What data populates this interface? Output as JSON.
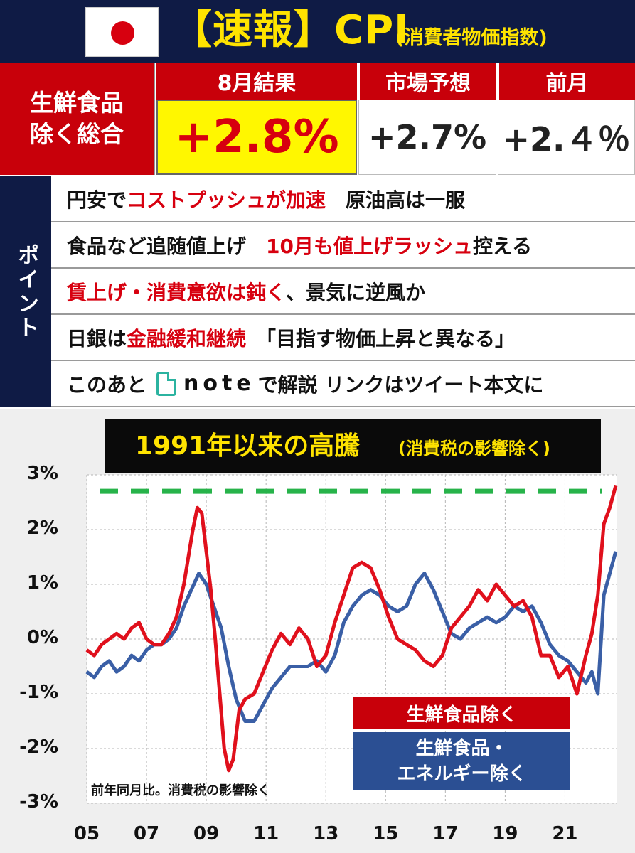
{
  "header": {
    "title": "【速報】CPI",
    "subtitle": "(消費者物価指数)",
    "flag_icon": "japan-flag-icon"
  },
  "results": {
    "row_label_line1": "生鮮食品",
    "row_label_line2": "除く総合",
    "col1_head": "8月結果",
    "col2_head": "市場予想",
    "col3_head": "前月",
    "col1_value": "+2.8%",
    "col2_value": "+2.7%",
    "col3_value": "+2.４％"
  },
  "points": {
    "side_label": "ポイント",
    "row1": {
      "a": "円安で",
      "b": "コストプッシュが加速",
      "c": "　原油高は一服"
    },
    "row2": {
      "a": "食品など追随値上げ　",
      "b": "10月も値上げラッシュ",
      "c": "控える"
    },
    "row3": {
      "a": "賃上げ・消費意欲は鈍く",
      "b": "、景気に逆風か"
    },
    "row4": {
      "a": "日銀は",
      "b": "金融緩和継続",
      "c": "　「目指す物価上昇と異なる」"
    },
    "row5": {
      "a": "このあと",
      "note": "note",
      "b": "で解説 リンクはツイート本文に"
    }
  },
  "chart_data": {
    "type": "line",
    "title": "1991年以来の高騰",
    "subtitle": "(消費税の影響除く)",
    "note": "前年同月比。消費税の影響除く",
    "y_ticks": [
      "3%",
      "2%",
      "1%",
      "0%",
      "-1%",
      "-2%",
      "-3%"
    ],
    "x_ticks": [
      "05",
      "07",
      "09",
      "11",
      "13",
      "15",
      "17",
      "19",
      "21"
    ],
    "ylim": [
      -3,
      3
    ],
    "xlim": [
      2005.0,
      2022.75
    ],
    "reference_line": {
      "value": 2.7,
      "color": "#27b34a",
      "style": "dashed"
    },
    "colors": {
      "red": "#e0101c",
      "blue": "#3a5fa6"
    },
    "series": [
      {
        "name": "生鮮食品除く",
        "color": "#e0101c",
        "x": [
          2005.0,
          2005.25,
          2005.5,
          2005.75,
          2006.0,
          2006.25,
          2006.5,
          2006.75,
          2007.0,
          2007.25,
          2007.5,
          2007.75,
          2008.0,
          2008.25,
          2008.4,
          2008.55,
          2008.7,
          2008.85,
          2009.0,
          2009.15,
          2009.3,
          2009.45,
          2009.6,
          2009.75,
          2009.9,
          2010.1,
          2010.3,
          2010.6,
          2010.9,
          2011.2,
          2011.5,
          2011.8,
          2012.1,
          2012.4,
          2012.7,
          2013.0,
          2013.3,
          2013.6,
          2013.9,
          2014.2,
          2014.5,
          2014.8,
          2015.1,
          2015.4,
          2015.7,
          2016.0,
          2016.3,
          2016.6,
          2016.9,
          2017.2,
          2017.5,
          2017.8,
          2018.1,
          2018.4,
          2018.7,
          2019.0,
          2019.3,
          2019.6,
          2019.9,
          2020.2,
          2020.5,
          2020.8,
          2021.1,
          2021.4,
          2021.7,
          2021.9,
          2022.1,
          2022.3,
          2022.5,
          2022.7
        ],
        "values": [
          -0.2,
          -0.3,
          -0.1,
          0.0,
          0.1,
          0.0,
          0.2,
          0.3,
          0.0,
          -0.1,
          -0.1,
          0.1,
          0.4,
          1.0,
          1.5,
          2.0,
          2.4,
          2.3,
          1.6,
          0.9,
          0.0,
          -1.0,
          -2.0,
          -2.4,
          -2.2,
          -1.3,
          -1.1,
          -1.0,
          -0.6,
          -0.2,
          0.1,
          -0.1,
          0.2,
          0.0,
          -0.5,
          -0.3,
          0.3,
          0.8,
          1.3,
          1.4,
          1.3,
          0.9,
          0.4,
          0.0,
          -0.1,
          -0.2,
          -0.4,
          -0.5,
          -0.3,
          0.2,
          0.4,
          0.6,
          0.9,
          0.7,
          1.0,
          0.8,
          0.6,
          0.7,
          0.4,
          -0.3,
          -0.3,
          -0.7,
          -0.5,
          -1.0,
          -0.3,
          0.1,
          0.8,
          2.1,
          2.4,
          2.8
        ]
      },
      {
        "name": "生鮮食品・エネルギー除く",
        "color": "#3a5fa6",
        "x": [
          2005.0,
          2005.25,
          2005.5,
          2005.75,
          2006.0,
          2006.25,
          2006.5,
          2006.75,
          2007.0,
          2007.25,
          2007.5,
          2007.75,
          2008.0,
          2008.25,
          2008.5,
          2008.75,
          2009.0,
          2009.25,
          2009.5,
          2009.75,
          2010.0,
          2010.3,
          2010.6,
          2010.9,
          2011.2,
          2011.5,
          2011.8,
          2012.1,
          2012.4,
          2012.7,
          2013.0,
          2013.3,
          2013.6,
          2013.9,
          2014.2,
          2014.5,
          2014.8,
          2015.1,
          2015.4,
          2015.7,
          2016.0,
          2016.3,
          2016.6,
          2016.9,
          2017.2,
          2017.5,
          2017.8,
          2018.1,
          2018.4,
          2018.7,
          2019.0,
          2019.3,
          2019.6,
          2019.9,
          2020.2,
          2020.5,
          2020.8,
          2021.1,
          2021.4,
          2021.7,
          2021.9,
          2022.1,
          2022.3,
          2022.5,
          2022.7
        ],
        "values": [
          -0.6,
          -0.7,
          -0.5,
          -0.4,
          -0.6,
          -0.5,
          -0.3,
          -0.4,
          -0.2,
          -0.1,
          -0.1,
          0.0,
          0.2,
          0.6,
          0.9,
          1.2,
          1.0,
          0.6,
          0.2,
          -0.5,
          -1.1,
          -1.5,
          -1.5,
          -1.2,
          -0.9,
          -0.7,
          -0.5,
          -0.5,
          -0.5,
          -0.4,
          -0.6,
          -0.3,
          0.3,
          0.6,
          0.8,
          0.9,
          0.8,
          0.6,
          0.5,
          0.6,
          1.0,
          1.2,
          0.9,
          0.5,
          0.1,
          0.0,
          0.2,
          0.3,
          0.4,
          0.3,
          0.4,
          0.6,
          0.5,
          0.6,
          0.3,
          -0.1,
          -0.3,
          -0.4,
          -0.6,
          -0.8,
          -0.6,
          -1.0,
          0.8,
          1.2,
          1.6
        ]
      }
    ]
  }
}
